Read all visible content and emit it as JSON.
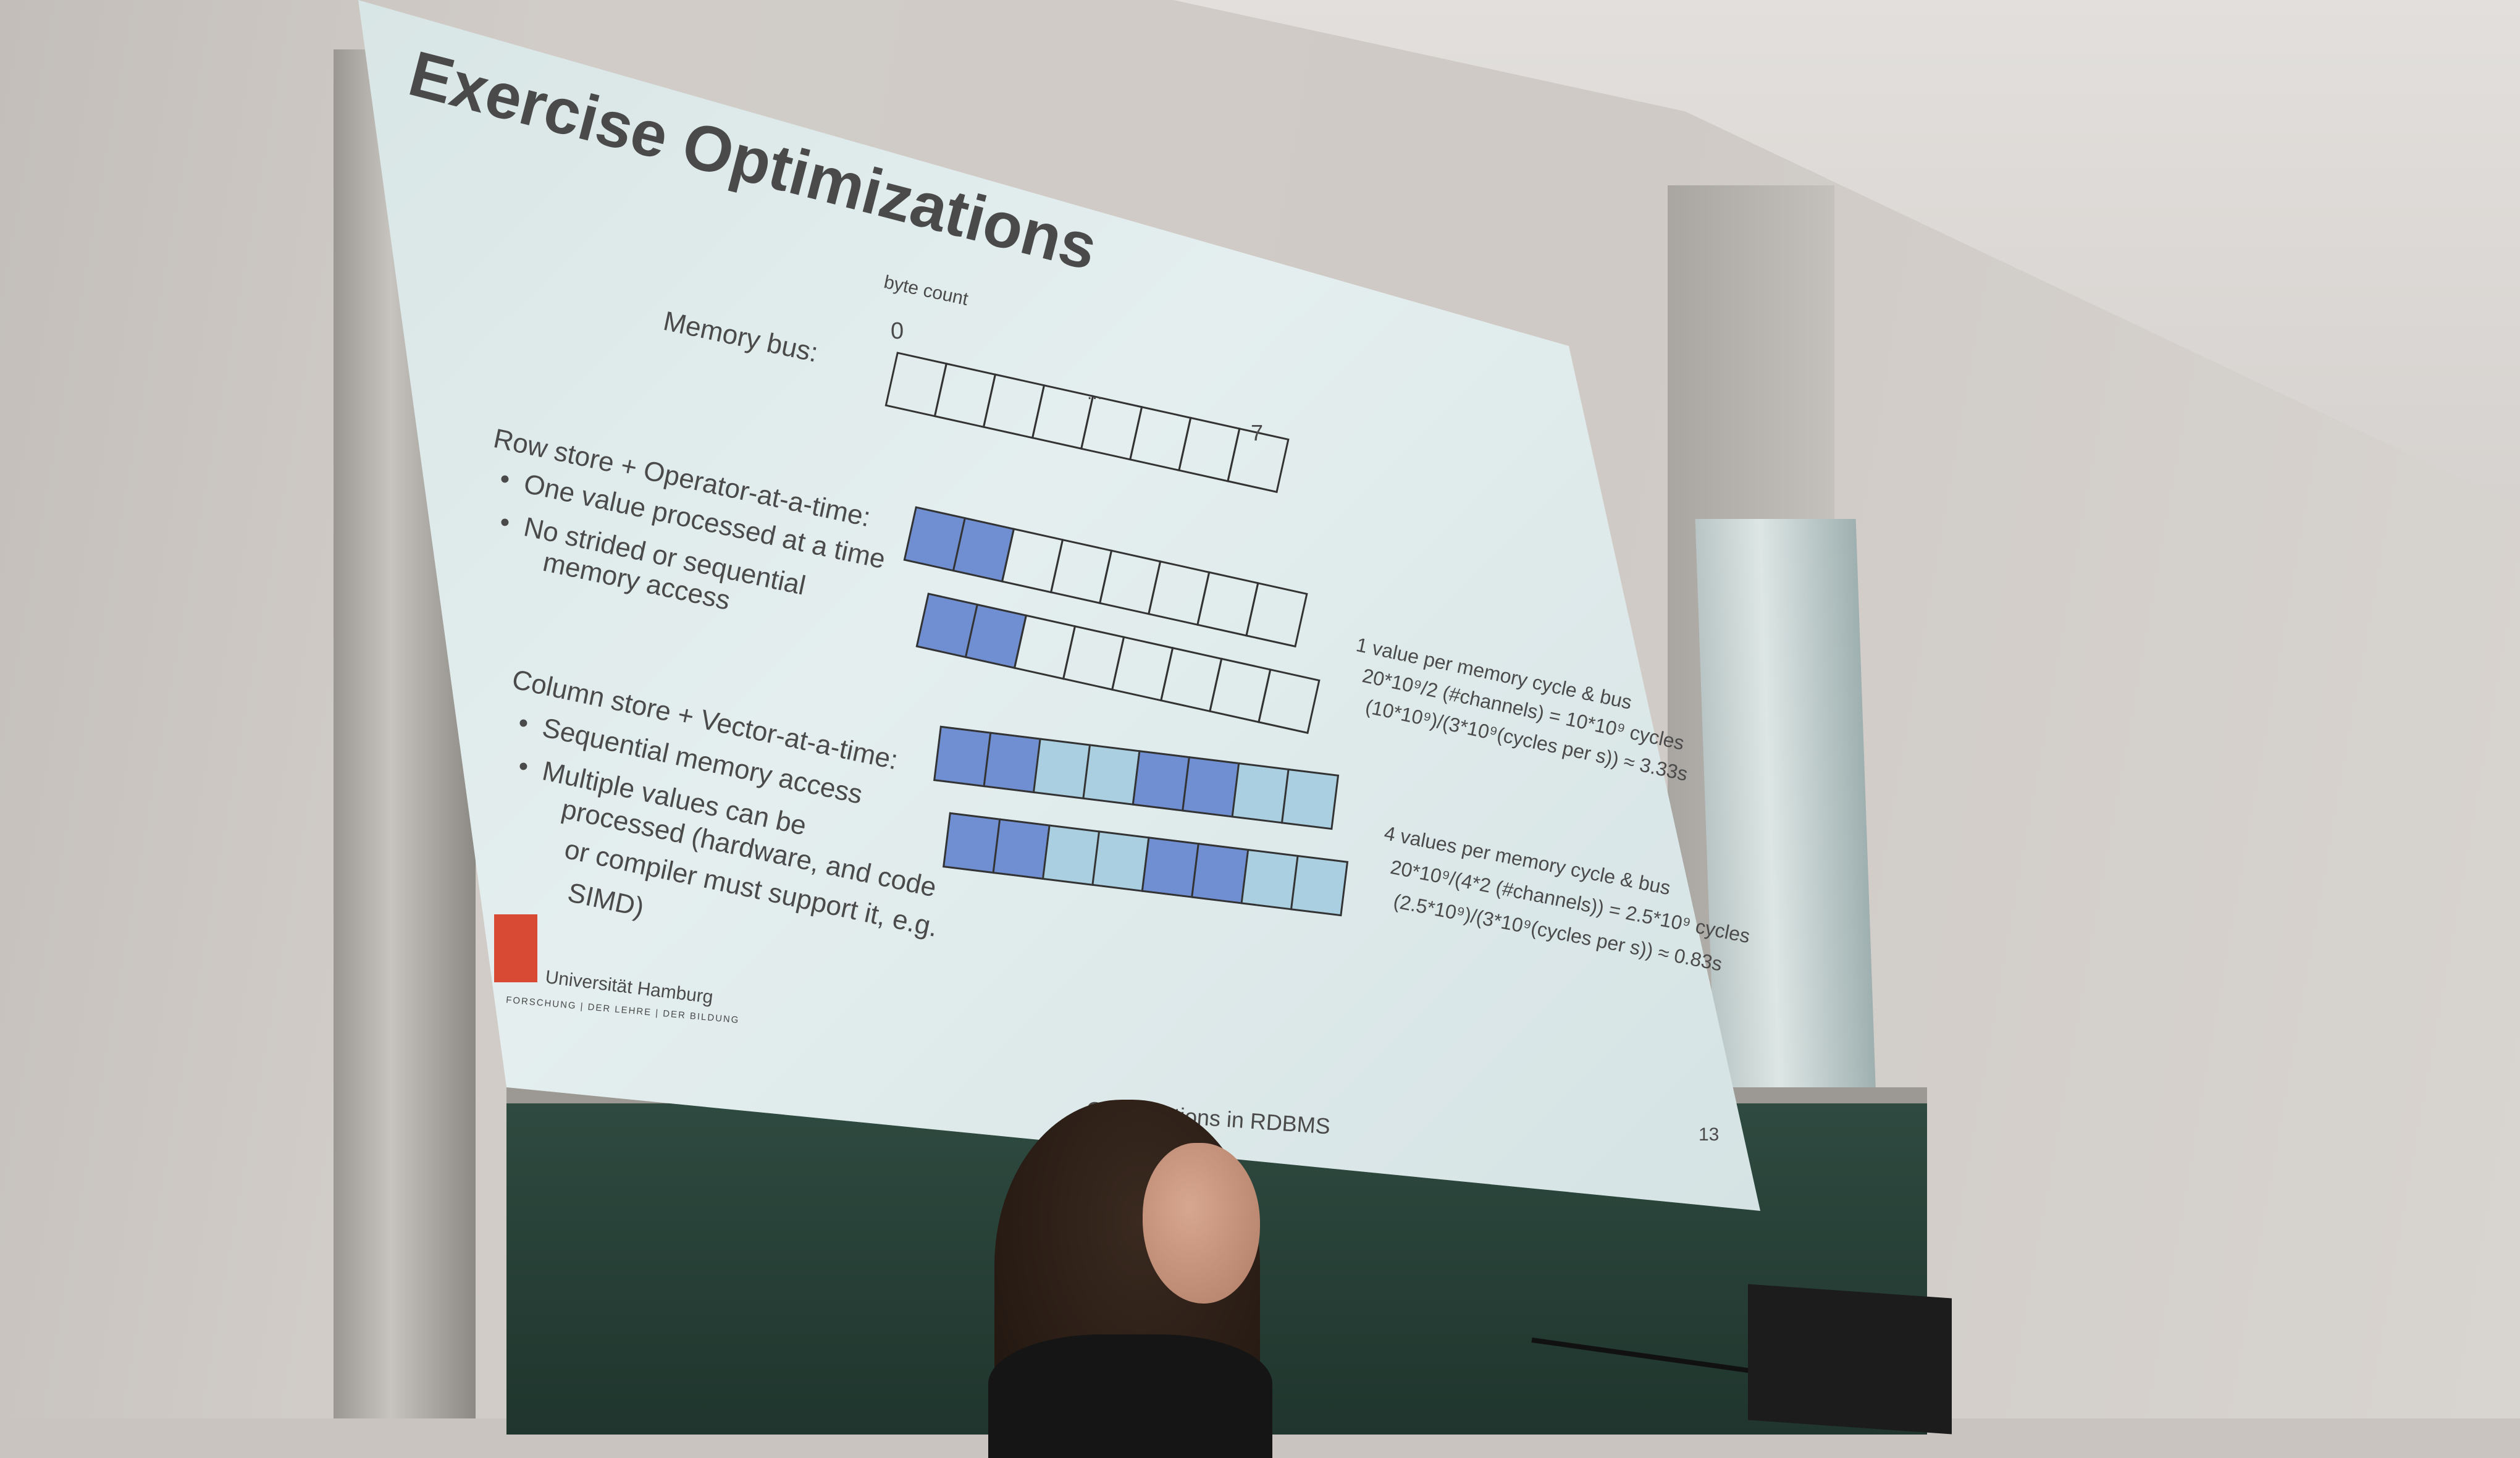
{
  "slide": {
    "title": "Exercise Optimizations",
    "byte_count_label": "byte count",
    "memory_bus_label": "Memory bus:",
    "bus_start": "0",
    "bus_end": "7",
    "bus_ellipsis": "...",
    "row_store_heading": "Row store + Operator-at-a-time:",
    "row_store_bullets": [
      "One value processed at a time",
      "No strided or sequential",
      "memory access"
    ],
    "column_store_heading": "Column store + Vector-at-a-time:",
    "column_store_bullets": [
      "Sequential memory access",
      "Multiple values can be",
      "processed (hardware, and code",
      "or compiler must support it, e.g.",
      "SIMD)"
    ],
    "row_calc": [
      "1 value per memory cycle & bus",
      "20*10⁹/2 (#channels) = 10*10⁹ cycles",
      "(10*10⁹)/(3*10⁹(cycles per s)) ≈ 3.33s"
    ],
    "row_result": "3.33s",
    "col_calc": [
      "4 values per memory cycle & bus",
      "20*10⁹/(4*2 (#channels)) = 2.5*10⁹ cycles",
      "(2.5*10⁹)/(3*10⁹(cycles per s)) ≈ 0.83s"
    ],
    "col_result": "0.83s",
    "university_name": "Universität Hamburg",
    "university_motto": "FORSCHUNG | DER LEHRE | DER BILDUNG",
    "footer_text": "Optimizations in RDBMS",
    "page_number": "13"
  },
  "colors": {
    "cell_dark": "#6f8fd2",
    "cell_light": "#a9cfe0",
    "logo_red": "#d94a35"
  }
}
